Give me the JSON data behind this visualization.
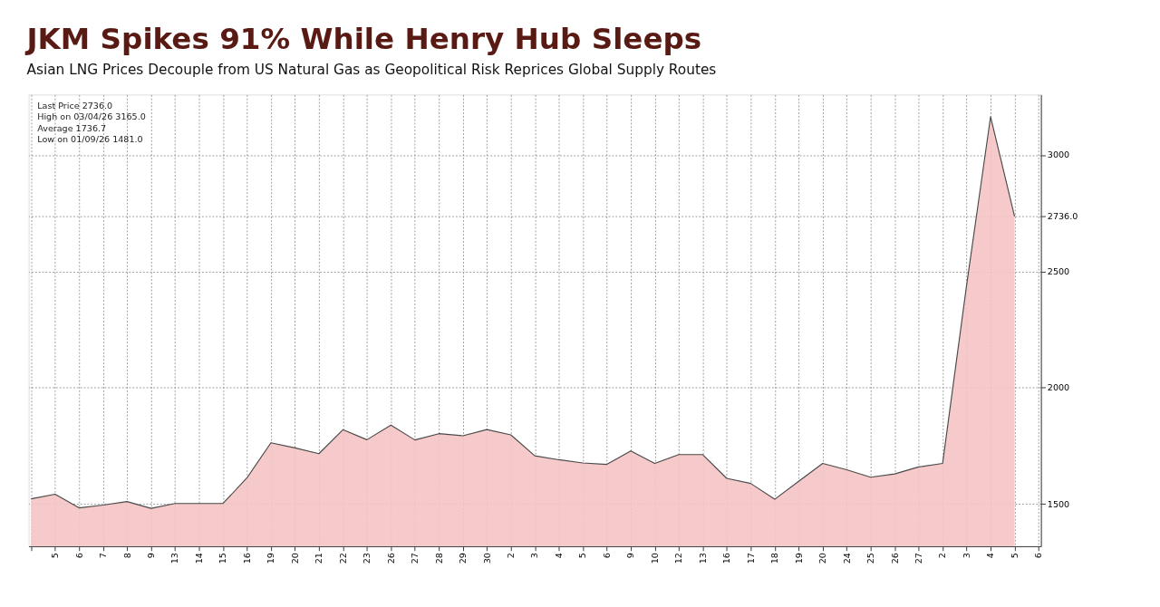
{
  "chart_data": {
    "type": "area",
    "title": "JKM Spikes 91% While Henry Hub Sleeps",
    "subtitle": "Asian LNG Prices Decouple from US Natural Gas as Geopolitical Risk Reprices Global Supply Routes",
    "categories": [
      null,
      "5",
      "6",
      "7",
      "8",
      "9",
      "13",
      "14",
      "15",
      "16",
      "19",
      "20",
      "21",
      "22",
      "23",
      "26",
      "27",
      "28",
      "29",
      "30",
      "2",
      "3",
      "4",
      "5",
      "6",
      "9",
      "10",
      "12",
      "13",
      "16",
      "17",
      "18",
      "19",
      "20",
      "24",
      "25",
      "26",
      "27",
      "2",
      "3",
      "4",
      "5",
      "6"
    ],
    "series": [
      {
        "color": "#f5c4c4",
        "values": [
          1522,
          1542,
          1483,
          1495,
          1510,
          1481,
          1502,
          1502,
          1502,
          1612,
          1763,
          1741,
          1716,
          1819,
          1776,
          1839,
          1775,
          1802,
          1793,
          1820,
          1797,
          1707,
          1690,
          1676,
          1670,
          1728,
          1674,
          1712,
          1712,
          1610,
          1588,
          1520,
          1597,
          1674,
          1647,
          1615,
          1629,
          1659,
          1674,
          2440,
          3165,
          2736,
          null
        ]
      }
    ],
    "ylim": [
      1318,
      3260
    ],
    "yticks": [
      1500,
      2000,
      2500,
      {
        "value": 2736,
        "label": "2736.0"
      },
      3000
    ],
    "grid": true,
    "annotations": [
      "Last Price 2736.0",
      "High on 03/04/26 3165.0",
      "Average 1736.7",
      "Low on 01/09/26 1481.0"
    ]
  }
}
